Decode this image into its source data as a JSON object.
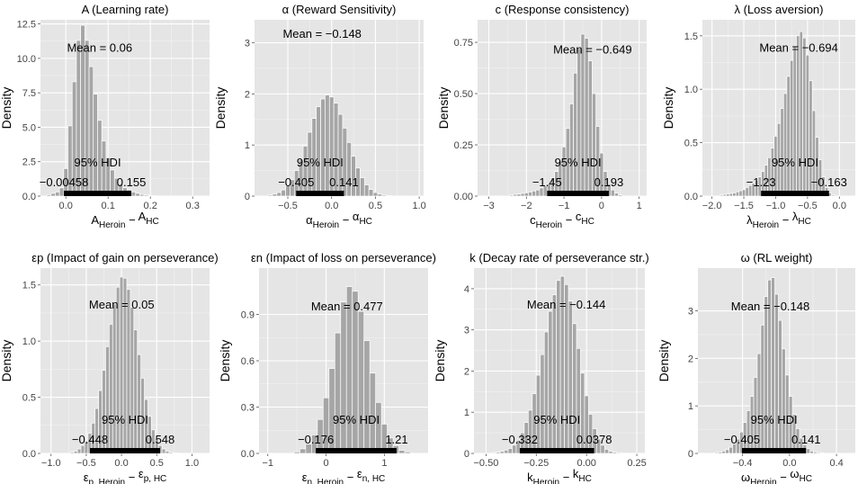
{
  "chart_data": [
    {
      "type": "bar",
      "title": "A (Learning rate)",
      "ylabel": "Density",
      "xlabel": {
        "base": "A",
        "sub1": "Heroin",
        "sub2": "HC"
      },
      "xlim": [
        -0.06,
        0.34
      ],
      "ylim": [
        0,
        12.8
      ],
      "xticks": [
        0.0,
        0.1,
        0.2,
        0.3
      ],
      "xtick_labels": [
        "0.0",
        "0.1",
        "0.2",
        "0.3"
      ],
      "yticks": [
        0,
        2.5,
        5,
        7.5,
        10,
        12.5
      ],
      "ytick_labels": [
        "0.0",
        "2.5",
        "5.0",
        "7.5",
        "10.0",
        "12.5"
      ],
      "bin_width": 0.01,
      "bins": {
        "x": [
          -0.04,
          -0.03,
          -0.02,
          -0.01,
          0.0,
          0.01,
          0.02,
          0.03,
          0.04,
          0.05,
          0.06,
          0.07,
          0.08,
          0.09,
          0.1,
          0.11,
          0.12,
          0.13,
          0.14,
          0.15,
          0.16,
          0.17,
          0.18,
          0.19,
          0.2,
          0.21
        ],
        "density": [
          0.1,
          0.2,
          0.3,
          0.6,
          2.0,
          5.1,
          8.3,
          11.3,
          12.4,
          11.3,
          9.4,
          7.4,
          5.5,
          4.0,
          2.8,
          1.9,
          1.3,
          0.9,
          0.6,
          0.45,
          0.3,
          0.2,
          0.12,
          0.08,
          0.05,
          0.03
        ]
      },
      "mean_label": "Mean = 0.06",
      "hdi_label": "95% HDI",
      "hdi": [
        -0.00458,
        0.155
      ],
      "hdi_low_label": "−0.00458",
      "hdi_high_label": "0.155"
    },
    {
      "type": "bar",
      "title": "α (Reward Sensitivity)",
      "ylabel": "Density",
      "xlabel": {
        "base": "α",
        "sub1": "Heroin",
        "sub2": "HC"
      },
      "xlim": [
        -0.88,
        1.05
      ],
      "ylim": [
        0,
        3.45
      ],
      "xticks": [
        -0.5,
        0.0,
        0.5,
        1.0
      ],
      "xtick_labels": [
        "−0.5",
        "0.0",
        "0.5",
        "1.0"
      ],
      "yticks": [
        0,
        1,
        2,
        3
      ],
      "ytick_labels": [
        "0",
        "1",
        "2",
        "3"
      ],
      "bin_width": 0.05,
      "bins": {
        "x": [
          -0.7,
          -0.65,
          -0.6,
          -0.55,
          -0.5,
          -0.45,
          -0.4,
          -0.35,
          -0.3,
          -0.25,
          -0.2,
          -0.15,
          -0.1,
          -0.05,
          0.0,
          0.05,
          0.1,
          0.15,
          0.2,
          0.25,
          0.3,
          0.35,
          0.4,
          0.45,
          0.5,
          0.55,
          0.6,
          0.65
        ],
        "density": [
          0.02,
          0.04,
          0.07,
          0.12,
          0.2,
          0.32,
          0.5,
          0.72,
          0.98,
          1.25,
          1.52,
          1.75,
          1.9,
          1.98,
          1.94,
          1.82,
          1.6,
          1.33,
          1.05,
          0.78,
          0.55,
          0.36,
          0.22,
          0.13,
          0.07,
          0.04,
          0.02,
          0.01
        ]
      },
      "mean_label": "Mean = −0.148",
      "hdi_label": "95% HDI",
      "hdi": [
        -0.405,
        0.141
      ],
      "hdi_low_label": "−0.405",
      "hdi_high_label": "0.141"
    },
    {
      "type": "bar",
      "title": "c (Response consistency)",
      "ylabel": "Density",
      "xlabel": {
        "base": "c",
        "sub1": "Heroin",
        "sub2": "HC"
      },
      "xlim": [
        -3.3,
        1.2
      ],
      "ylim": [
        0,
        0.86
      ],
      "xticks": [
        -3,
        -2,
        -1,
        0,
        1
      ],
      "xtick_labels": [
        "−3",
        "−2",
        "−1",
        "0",
        "1"
      ],
      "yticks": [
        0,
        0.25,
        0.5,
        0.75
      ],
      "ytick_labels": [
        "0.00",
        "0.25",
        "0.50",
        "0.75"
      ],
      "bin_width": 0.1,
      "bins": {
        "x": [
          -2.4,
          -2.3,
          -2.2,
          -2.1,
          -2.0,
          -1.9,
          -1.8,
          -1.7,
          -1.6,
          -1.5,
          -1.4,
          -1.3,
          -1.2,
          -1.1,
          -1.0,
          -0.9,
          -0.8,
          -0.7,
          -0.6,
          -0.5,
          -0.4,
          -0.3,
          -0.2,
          -0.1,
          0.0,
          0.1,
          0.2,
          0.3,
          0.4,
          0.5
        ],
        "density": [
          0.005,
          0.008,
          0.01,
          0.013,
          0.016,
          0.02,
          0.025,
          0.03,
          0.04,
          0.05,
          0.06,
          0.09,
          0.12,
          0.17,
          0.24,
          0.33,
          0.45,
          0.6,
          0.72,
          0.79,
          0.77,
          0.66,
          0.5,
          0.34,
          0.21,
          0.12,
          0.06,
          0.03,
          0.015,
          0.006
        ]
      },
      "mean_label": "Mean = −0.649",
      "hdi_label": "95% HDI",
      "hdi": [
        -1.45,
        0.193
      ],
      "hdi_low_label": "−1.45",
      "hdi_high_label": "0.193"
    },
    {
      "type": "bar",
      "title": "λ (Loss aversion)",
      "ylabel": "Density",
      "xlabel": {
        "base": "λ",
        "sub1": "Heroin",
        "sub2": "HC"
      },
      "xlim": [
        -2.15,
        0.25
      ],
      "ylim": [
        0,
        1.65
      ],
      "xticks": [
        -2.0,
        -1.5,
        -1.0,
        -0.5,
        0.0
      ],
      "xtick_labels": [
        "−2.0",
        "−1.5",
        "−1.0",
        "−0.5",
        "0.0"
      ],
      "yticks": [
        0,
        0.5,
        1.0,
        1.5
      ],
      "ytick_labels": [
        "0.0",
        "0.5",
        "1.0",
        "1.5"
      ],
      "bin_width": 0.05,
      "bins": {
        "x": [
          -1.85,
          -1.8,
          -1.75,
          -1.7,
          -1.65,
          -1.6,
          -1.55,
          -1.5,
          -1.45,
          -1.4,
          -1.35,
          -1.3,
          -1.25,
          -1.2,
          -1.15,
          -1.1,
          -1.05,
          -1.0,
          -0.95,
          -0.9,
          -0.85,
          -0.8,
          -0.75,
          -0.7,
          -0.65,
          -0.6,
          -0.55,
          -0.5,
          -0.45,
          -0.4,
          -0.35,
          -0.3,
          -0.25,
          -0.2,
          -0.15,
          -0.1
        ],
        "density": [
          0.01,
          0.015,
          0.02,
          0.025,
          0.03,
          0.04,
          0.05,
          0.06,
          0.08,
          0.1,
          0.12,
          0.15,
          0.18,
          0.23,
          0.29,
          0.36,
          0.45,
          0.56,
          0.68,
          0.82,
          0.96,
          1.12,
          1.27,
          1.4,
          1.5,
          1.54,
          1.48,
          1.32,
          1.08,
          0.8,
          0.55,
          0.34,
          0.18,
          0.08,
          0.03,
          0.01
        ]
      },
      "mean_label": "Mean = −0.694",
      "hdi_label": "95% HDI",
      "hdi": [
        -1.23,
        -0.163
      ],
      "hdi_low_label": "−1.23",
      "hdi_high_label": "−0.163"
    },
    {
      "type": "bar",
      "title": "εp (Impact of gain on perseverance)",
      "ylabel": "Density",
      "xlabel": {
        "base": "ε",
        "sub1": "p, Heroin",
        "sub2": "p, HC"
      },
      "xlim": [
        -1.15,
        1.25
      ],
      "ylim": [
        0,
        1.65
      ],
      "xticks": [
        -1.0,
        -0.5,
        0.0,
        0.5,
        1.0
      ],
      "xtick_labels": [
        "−1.0",
        "−0.5",
        "0.0",
        "0.5",
        "1.0"
      ],
      "yticks": [
        0,
        0.5,
        1.0,
        1.5
      ],
      "ytick_labels": [
        "0.0",
        "0.5",
        "1.0",
        "1.5"
      ],
      "bin_width": 0.05,
      "bins": {
        "x": [
          -0.7,
          -0.65,
          -0.6,
          -0.55,
          -0.5,
          -0.45,
          -0.4,
          -0.35,
          -0.3,
          -0.25,
          -0.2,
          -0.15,
          -0.1,
          -0.05,
          0.0,
          0.05,
          0.1,
          0.15,
          0.2,
          0.25,
          0.3,
          0.35,
          0.4,
          0.45,
          0.5,
          0.55,
          0.6,
          0.65,
          0.7,
          0.75,
          0.8
        ],
        "density": [
          0.01,
          0.02,
          0.04,
          0.07,
          0.11,
          0.18,
          0.27,
          0.4,
          0.56,
          0.74,
          0.95,
          1.15,
          1.33,
          1.48,
          1.57,
          1.56,
          1.46,
          1.3,
          1.1,
          0.88,
          0.67,
          0.48,
          0.33,
          0.21,
          0.13,
          0.07,
          0.04,
          0.02,
          0.01,
          0.005,
          0.003
        ]
      },
      "mean_label": "Mean = 0.05",
      "hdi_label": "95% HDI",
      "hdi": [
        -0.448,
        0.548
      ],
      "hdi_low_label": "−0.448",
      "hdi_high_label": "0.548"
    },
    {
      "type": "bar",
      "title": "εn (Impact of loss on perseverance)",
      "ylabel": "Density",
      "xlabel": {
        "base": "ε",
        "sub1": "n, Heroin",
        "sub2": "n, HC"
      },
      "xlim": [
        -1.15,
        1.75
      ],
      "ylim": [
        0,
        1.2
      ],
      "xticks": [
        -1,
        0,
        1
      ],
      "xtick_labels": [
        "−1",
        "0",
        "1"
      ],
      "yticks": [
        0,
        0.3,
        0.6,
        0.9
      ],
      "ytick_labels": [
        "0.0",
        "0.3",
        "0.6",
        "0.9"
      ],
      "bin_width": 0.1,
      "bins": {
        "x": [
          -0.5,
          -0.4,
          -0.3,
          -0.2,
          -0.1,
          0.0,
          0.1,
          0.2,
          0.3,
          0.4,
          0.5,
          0.6,
          0.7,
          0.8,
          0.9,
          1.0,
          1.1,
          1.2,
          1.3,
          1.4
        ],
        "density": [
          0.01,
          0.03,
          0.06,
          0.12,
          0.22,
          0.36,
          0.55,
          0.78,
          0.98,
          1.08,
          1.05,
          0.92,
          0.73,
          0.52,
          0.33,
          0.19,
          0.1,
          0.05,
          0.02,
          0.01
        ]
      },
      "mean_label": "Mean = 0.477",
      "hdi_label": "95% HDI",
      "hdi": [
        -0.176,
        1.21
      ],
      "hdi_low_label": "−0.176",
      "hdi_high_label": "1.21"
    },
    {
      "type": "bar",
      "title": "k (Decay rate of perseverance str.)",
      "ylabel": "Density",
      "xlabel": {
        "base": "k",
        "sub1": "Heroin",
        "sub2": "HC"
      },
      "xlim": [
        -0.56,
        0.29
      ],
      "ylim": [
        0,
        4.5
      ],
      "xticks": [
        -0.5,
        -0.25,
        0.0,
        0.25
      ],
      "xtick_labels": [
        "−0.50",
        "−0.25",
        "0.00",
        "0.25"
      ],
      "yticks": [
        0,
        1,
        2,
        3,
        4
      ],
      "ytick_labels": [
        "0",
        "1",
        "2",
        "3",
        "4"
      ],
      "bin_width": 0.02,
      "bins": {
        "x": [
          -0.46,
          -0.44,
          -0.42,
          -0.4,
          -0.38,
          -0.36,
          -0.34,
          -0.32,
          -0.3,
          -0.28,
          -0.26,
          -0.24,
          -0.22,
          -0.2,
          -0.18,
          -0.16,
          -0.14,
          -0.12,
          -0.1,
          -0.08,
          -0.06,
          -0.04,
          -0.02,
          0.0,
          0.02,
          0.04,
          0.06,
          0.08,
          0.1,
          0.12,
          0.14,
          0.16,
          0.18,
          0.2
        ],
        "density": [
          0.02,
          0.03,
          0.05,
          0.08,
          0.12,
          0.2,
          0.32,
          0.5,
          0.75,
          1.05,
          1.45,
          1.9,
          2.4,
          2.95,
          3.45,
          3.85,
          4.2,
          4.3,
          4.1,
          3.7,
          3.15,
          2.55,
          1.95,
          1.4,
          0.95,
          0.6,
          0.35,
          0.2,
          0.1,
          0.05,
          0.03,
          0.02,
          0.01,
          0.005
        ]
      },
      "mean_label": "Mean = −0.144",
      "hdi_label": "95% HDI",
      "hdi": [
        -0.332,
        0.0378
      ],
      "hdi_low_label": "−0.332",
      "hdi_high_label": "0.0378"
    },
    {
      "type": "bar",
      "title": "ω (RL weight)",
      "ylabel": "Density",
      "xlabel": {
        "base": "ω",
        "sub1": "Heroin",
        "sub2": "HC"
      },
      "xlim": [
        -0.78,
        0.56
      ],
      "ylim": [
        0,
        3.9
      ],
      "xticks": [
        -0.4,
        0.0,
        0.4
      ],
      "xtick_labels": [
        "−0.4",
        "0.0",
        "0.4"
      ],
      "yticks": [
        0,
        1,
        2,
        3
      ],
      "ytick_labels": [
        "0",
        "1",
        "2",
        "3"
      ],
      "bin_width": 0.03,
      "bins": {
        "x": [
          -0.62,
          -0.59,
          -0.56,
          -0.53,
          -0.5,
          -0.47,
          -0.44,
          -0.41,
          -0.38,
          -0.35,
          -0.32,
          -0.29,
          -0.26,
          -0.23,
          -0.2,
          -0.17,
          -0.14,
          -0.11,
          -0.08,
          -0.05,
          -0.02,
          0.01,
          0.04,
          0.07,
          0.1,
          0.13,
          0.16,
          0.19,
          0.22,
          0.25,
          0.28
        ],
        "density": [
          0.02,
          0.03,
          0.05,
          0.08,
          0.13,
          0.2,
          0.3,
          0.45,
          0.65,
          0.9,
          1.2,
          1.6,
          2.1,
          2.7,
          3.3,
          3.65,
          3.7,
          3.35,
          2.8,
          2.2,
          1.65,
          1.2,
          0.82,
          0.52,
          0.32,
          0.18,
          0.1,
          0.05,
          0.03,
          0.02,
          0.01
        ]
      },
      "mean_label": "Mean = −0.148",
      "hdi_label": "95% HDI",
      "hdi": [
        -0.405,
        0.141
      ],
      "hdi_low_label": "−0.405",
      "hdi_high_label": "0.141"
    }
  ]
}
